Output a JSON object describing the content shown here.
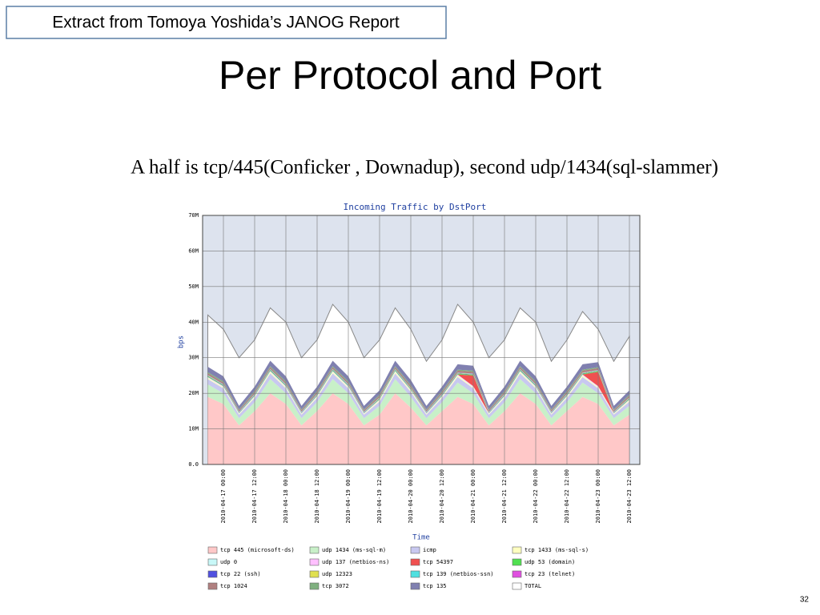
{
  "slide": {
    "source_note": "Extract from Tomoya Yoshida’s JANOG Report",
    "title": "Per Protocol and Port",
    "caption": "A half is tcp/445(Conficker , Downadup), second udp/1434(sql-slammer)",
    "page_number": "32"
  },
  "chart_data": {
    "type": "area",
    "title": "Incoming Traffic by DstPort",
    "xlabel": "Time",
    "ylabel": "bps",
    "grid": true,
    "x": [
      "2010-04-16 18:00",
      "2010-04-17 00:00",
      "2010-04-17 06:00",
      "2010-04-17 12:00",
      "2010-04-17 18:00",
      "2010-04-18 00:00",
      "2010-04-18 06:00",
      "2010-04-18 12:00",
      "2010-04-18 18:00",
      "2010-04-19 00:00",
      "2010-04-19 06:00",
      "2010-04-19 12:00",
      "2010-04-19 18:00",
      "2010-04-20 00:00",
      "2010-04-20 06:00",
      "2010-04-20 12:00",
      "2010-04-20 18:00",
      "2010-04-21 00:00",
      "2010-04-21 06:00",
      "2010-04-21 12:00",
      "2010-04-21 18:00",
      "2010-04-22 00:00",
      "2010-04-22 06:00",
      "2010-04-22 12:00",
      "2010-04-22 18:00",
      "2010-04-23 00:00",
      "2010-04-23 06:00",
      "2010-04-23 12:00"
    ],
    "xlim": [
      "2010-04-16 16:00",
      "2010-04-23 16:00"
    ],
    "xticks": [
      "2010-04-17 00:00",
      "2010-04-17 12:00",
      "2010-04-18 00:00",
      "2010-04-18 12:00",
      "2010-04-19 00:00",
      "2010-04-19 12:00",
      "2010-04-20 00:00",
      "2010-04-20 12:00",
      "2010-04-21 00:00",
      "2010-04-21 12:00",
      "2010-04-22 00:00",
      "2010-04-22 12:00",
      "2010-04-23 00:00",
      "2010-04-23 12:00"
    ],
    "ylim": [
      0,
      70000000
    ],
    "yticks": [
      {
        "value": 0,
        "label": "0.0"
      },
      {
        "value": 10000000,
        "label": "10M"
      },
      {
        "value": 20000000,
        "label": "20M"
      },
      {
        "value": 30000000,
        "label": "30M"
      },
      {
        "value": 40000000,
        "label": "40M"
      },
      {
        "value": 50000000,
        "label": "50M"
      },
      {
        "value": 60000000,
        "label": "60M"
      },
      {
        "value": 70000000,
        "label": "70M"
      }
    ],
    "series": [
      {
        "name": "tcp 445 (microsoft-ds)",
        "color": "#ffc8c8",
        "stacked": true,
        "values": [
          19000000.0,
          17000000.0,
          11000000.0,
          15000000.0,
          20000000.0,
          17000000.0,
          11000000.0,
          15000000.0,
          20000000.0,
          17000000.0,
          11000000.0,
          14000000.0,
          20000000.0,
          16000000.0,
          11000000.0,
          15000000.0,
          19000000.0,
          17000000.0,
          11000000.0,
          15000000.0,
          20000000.0,
          17000000.0,
          11000000.0,
          15000000.0,
          19000000.0,
          17000000.0,
          11000000.0,
          14000000.0
        ]
      },
      {
        "name": "udp 1434 (ms-sql-m)",
        "color": "#c8f0c8",
        "stacked": true,
        "values": [
          3500000.0,
          3000000.0,
          2000000.0,
          2500000.0,
          4000000.0,
          3000000.0,
          2000000.0,
          2500000.0,
          4000000.0,
          3000000.0,
          2000000.0,
          2500000.0,
          4000000.0,
          3000000.0,
          2000000.0,
          2500000.0,
          4000000.0,
          3000000.0,
          2000000.0,
          2500000.0,
          4000000.0,
          3000000.0,
          2000000.0,
          2500000.0,
          4000000.0,
          3000000.0,
          2000000.0,
          2500000.0
        ]
      },
      {
        "name": "icmp",
        "color": "#c8c8f0",
        "stacked": true,
        "values": [
          1500000.0,
          1400000.0,
          1000000.0,
          1200000.0,
          1600000.0,
          1400000.0,
          1000000.0,
          1200000.0,
          1600000.0,
          1400000.0,
          1000000.0,
          1200000.0,
          1600000.0,
          1400000.0,
          1000000.0,
          1200000.0,
          1600000.0,
          1400000.0,
          1000000.0,
          1200000.0,
          1600000.0,
          1400000.0,
          1000000.0,
          1200000.0,
          1600000.0,
          1400000.0,
          1000000.0,
          1200000.0
        ]
      },
      {
        "name": "tcp 1433 (ms-sql-s)",
        "color": "#ffffc0",
        "stacked": true,
        "values": [
          300000.0,
          300000.0,
          200000.0,
          300000.0,
          400000.0,
          300000.0,
          200000.0,
          300000.0,
          400000.0,
          300000.0,
          200000.0,
          300000.0,
          400000.0,
          300000.0,
          200000.0,
          300000.0,
          400000.0,
          300000.0,
          200000.0,
          300000.0,
          400000.0,
          300000.0,
          200000.0,
          300000.0,
          400000.0,
          300000.0,
          200000.0,
          300000.0
        ]
      },
      {
        "name": "udp 0",
        "color": "#c8f8f8",
        "stacked": true,
        "values": [
          100000.0,
          100000.0,
          100000.0,
          100000.0,
          100000.0,
          100000.0,
          100000.0,
          100000.0,
          100000.0,
          100000.0,
          100000.0,
          100000.0,
          100000.0,
          100000.0,
          100000.0,
          100000.0,
          100000.0,
          100000.0,
          100000.0,
          100000.0,
          100000.0,
          100000.0,
          100000.0,
          100000.0,
          100000.0,
          100000.0,
          100000.0,
          100000.0
        ]
      },
      {
        "name": "udp 137 (netbios-ns)",
        "color": "#ffc0ff",
        "stacked": true,
        "values": [
          200000.0,
          200000.0,
          100000.0,
          200000.0,
          200000.0,
          200000.0,
          100000.0,
          200000.0,
          200000.0,
          200000.0,
          100000.0,
          200000.0,
          200000.0,
          200000.0,
          100000.0,
          200000.0,
          200000.0,
          200000.0,
          100000.0,
          200000.0,
          200000.0,
          200000.0,
          100000.0,
          200000.0,
          200000.0,
          200000.0,
          100000.0,
          200000.0
        ]
      },
      {
        "name": "tcp 54397",
        "color": "#f05050",
        "stacked": true,
        "values": [
          0,
          0,
          0,
          0,
          0,
          0,
          0,
          0,
          0,
          0,
          0,
          0,
          0,
          0,
          0,
          0,
          0,
          3000000.0,
          0,
          0,
          0,
          0,
          0,
          0,
          0,
          4000000.0,
          0,
          0
        ]
      },
      {
        "name": "udp 53 (domain)",
        "color": "#50e050",
        "stacked": true,
        "values": [
          200000.0,
          200000.0,
          100000.0,
          200000.0,
          200000.0,
          200000.0,
          100000.0,
          200000.0,
          200000.0,
          200000.0,
          100000.0,
          200000.0,
          200000.0,
          200000.0,
          100000.0,
          200000.0,
          200000.0,
          200000.0,
          100000.0,
          200000.0,
          200000.0,
          200000.0,
          100000.0,
          200000.0,
          200000.0,
          200000.0,
          100000.0,
          200000.0
        ]
      },
      {
        "name": "tcp 22 (ssh)",
        "color": "#5050e0",
        "stacked": true,
        "values": [
          100000.0,
          100000.0,
          100000.0,
          100000.0,
          100000.0,
          100000.0,
          100000.0,
          100000.0,
          100000.0,
          100000.0,
          100000.0,
          100000.0,
          100000.0,
          100000.0,
          100000.0,
          100000.0,
          100000.0,
          100000.0,
          100000.0,
          100000.0,
          100000.0,
          100000.0,
          100000.0,
          100000.0,
          100000.0,
          100000.0,
          100000.0,
          100000.0
        ]
      },
      {
        "name": "udp 12323",
        "color": "#e0e050",
        "stacked": true,
        "values": [
          100000.0,
          100000.0,
          100000.0,
          100000.0,
          100000.0,
          100000.0,
          100000.0,
          100000.0,
          100000.0,
          100000.0,
          100000.0,
          100000.0,
          100000.0,
          100000.0,
          100000.0,
          100000.0,
          100000.0,
          100000.0,
          100000.0,
          100000.0,
          100000.0,
          100000.0,
          100000.0,
          100000.0,
          100000.0,
          100000.0,
          100000.0,
          100000.0
        ]
      },
      {
        "name": "tcp 139 (netbios-ssn)",
        "color": "#50e0e0",
        "stacked": true,
        "values": [
          100000.0,
          100000.0,
          100000.0,
          100000.0,
          100000.0,
          100000.0,
          100000.0,
          100000.0,
          100000.0,
          100000.0,
          100000.0,
          100000.0,
          100000.0,
          100000.0,
          100000.0,
          100000.0,
          100000.0,
          100000.0,
          100000.0,
          100000.0,
          100000.0,
          100000.0,
          100000.0,
          100000.0,
          100000.0,
          100000.0,
          100000.0,
          100000.0
        ]
      },
      {
        "name": "tcp 23 (telnet)",
        "color": "#e050e0",
        "stacked": true,
        "values": [
          50000.0,
          50000.0,
          50000.0,
          50000.0,
          50000.0,
          50000.0,
          50000.0,
          50000.0,
          50000.0,
          50000.0,
          50000.0,
          50000.0,
          50000.0,
          50000.0,
          50000.0,
          50000.0,
          50000.0,
          50000.0,
          50000.0,
          50000.0,
          50000.0,
          50000.0,
          50000.0,
          50000.0,
          50000.0,
          50000.0,
          50000.0,
          50000.0
        ]
      },
      {
        "name": "tcp 1024",
        "color": "#b08080",
        "stacked": true,
        "values": [
          500000.0,
          500000.0,
          400000.0,
          500000.0,
          500000.0,
          500000.0,
          400000.0,
          500000.0,
          500000.0,
          500000.0,
          400000.0,
          500000.0,
          500000.0,
          500000.0,
          400000.0,
          500000.0,
          500000.0,
          500000.0,
          400000.0,
          500000.0,
          500000.0,
          500000.0,
          400000.0,
          500000.0,
          500000.0,
          500000.0,
          400000.0,
          500000.0
        ]
      },
      {
        "name": "tcp 3072",
        "color": "#80b080",
        "stacked": true,
        "values": [
          300000.0,
          300000.0,
          200000.0,
          300000.0,
          300000.0,
          300000.0,
          200000.0,
          300000.0,
          300000.0,
          300000.0,
          200000.0,
          300000.0,
          300000.0,
          300000.0,
          200000.0,
          300000.0,
          300000.0,
          300000.0,
          200000.0,
          300000.0,
          300000.0,
          300000.0,
          200000.0,
          300000.0,
          300000.0,
          300000.0,
          200000.0,
          300000.0
        ]
      },
      {
        "name": "tcp 135",
        "color": "#8080b0",
        "stacked": true,
        "values": [
          1500000.0,
          1400000.0,
          1000000.0,
          1200000.0,
          1500000.0,
          1400000.0,
          1000000.0,
          1200000.0,
          1500000.0,
          1400000.0,
          1000000.0,
          1200000.0,
          1500000.0,
          1400000.0,
          1000000.0,
          1200000.0,
          1500000.0,
          1400000.0,
          1000000.0,
          1200000.0,
          1500000.0,
          1400000.0,
          1000000.0,
          1200000.0,
          1500000.0,
          1400000.0,
          1000000.0,
          1200000.0
        ]
      },
      {
        "name": "TOTAL",
        "color": "#ffffff",
        "stacked": false,
        "values": [
          42000000.0,
          38000000.0,
          30000000.0,
          35000000.0,
          44000000.0,
          40000000.0,
          30000000.0,
          35000000.0,
          45000000.0,
          40000000.0,
          30000000.0,
          35000000.0,
          44000000.0,
          38000000.0,
          29000000.0,
          35000000.0,
          45000000.0,
          40000000.0,
          30000000.0,
          35000000.0,
          44000000.0,
          40000000.0,
          29000000.0,
          35000000.0,
          43000000.0,
          38000000.0,
          29000000.0,
          36000000.0
        ]
      }
    ]
  }
}
